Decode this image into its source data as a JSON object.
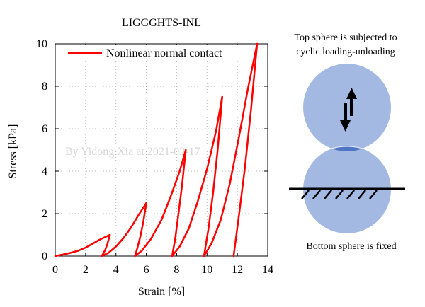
{
  "chart_data": {
    "type": "line",
    "title": "LIGGGHTS-INL",
    "xlabel": "Strain [%]",
    "ylabel": "Stress [kPa]",
    "xlim": [
      0,
      14
    ],
    "ylim": [
      0,
      10
    ],
    "xticks": [
      0,
      2,
      4,
      6,
      8,
      10,
      12,
      14
    ],
    "yticks": [
      0,
      2,
      4,
      6,
      8,
      10
    ],
    "grid": true,
    "legend_position": "top-left",
    "series": [
      {
        "name": "Nonlinear normal contact",
        "color": "#ff0000",
        "cycles": [
          {
            "load": [
              [
                0,
                0
              ],
              [
                0.5,
                0.07
              ],
              [
                1.0,
                0.15
              ],
              [
                1.5,
                0.25
              ],
              [
                2.0,
                0.4
              ],
              [
                2.5,
                0.6
              ],
              [
                3.0,
                0.8
              ],
              [
                3.6,
                1.0
              ]
            ],
            "unload": [
              [
                3.6,
                1.0
              ],
              [
                3.45,
                0.6
              ],
              [
                3.3,
                0.3
              ],
              [
                3.15,
                0.1
              ],
              [
                3.05,
                0
              ]
            ]
          },
          {
            "load": [
              [
                3.05,
                0
              ],
              [
                3.5,
                0.15
              ],
              [
                4.0,
                0.45
              ],
              [
                4.5,
                0.85
              ],
              [
                5.0,
                1.35
              ],
              [
                5.5,
                1.95
              ],
              [
                6.0,
                2.5
              ]
            ],
            "unload": [
              [
                6.0,
                2.5
              ],
              [
                5.8,
                1.6
              ],
              [
                5.6,
                0.9
              ],
              [
                5.4,
                0.35
              ],
              [
                5.25,
                0
              ]
            ]
          },
          {
            "load": [
              [
                5.25,
                0
              ],
              [
                5.7,
                0.25
              ],
              [
                6.3,
                0.8
              ],
              [
                7.0,
                1.7
              ],
              [
                7.6,
                2.8
              ],
              [
                8.2,
                4.0
              ],
              [
                8.6,
                5.0
              ]
            ],
            "unload": [
              [
                8.6,
                5.0
              ],
              [
                8.35,
                3.3
              ],
              [
                8.1,
                1.9
              ],
              [
                7.9,
                0.8
              ],
              [
                7.7,
                0
              ]
            ]
          },
          {
            "load": [
              [
                7.7,
                0
              ],
              [
                8.2,
                0.45
              ],
              [
                8.8,
                1.3
              ],
              [
                9.4,
                2.6
              ],
              [
                10.0,
                4.1
              ],
              [
                10.6,
                5.9
              ],
              [
                11.0,
                7.5
              ]
            ],
            "unload": [
              [
                11.0,
                7.5
              ],
              [
                10.7,
                5.0
              ],
              [
                10.4,
                3.0
              ],
              [
                10.1,
                1.3
              ],
              [
                9.8,
                0
              ]
            ]
          },
          {
            "load": [
              [
                9.8,
                0
              ],
              [
                10.3,
                0.6
              ],
              [
                10.9,
                1.7
              ],
              [
                11.5,
                3.4
              ],
              [
                12.1,
                5.6
              ],
              [
                12.7,
                7.9
              ],
              [
                13.3,
                10.0
              ]
            ],
            "unload": [
              [
                13.3,
                10.0
              ],
              [
                12.9,
                6.9
              ],
              [
                12.5,
                4.2
              ],
              [
                12.1,
                1.9
              ],
              [
                11.75,
                0
              ]
            ]
          }
        ]
      }
    ],
    "watermark": "By Yidong Xia at 2021-03-17"
  },
  "diagram": {
    "top_caption_line1": "Top sphere is subjected to",
    "top_caption_line2": "cyclic loading-unloading",
    "bottom_caption": "Bottom sphere is fixed",
    "sphere_color": "#a4b9e2",
    "overlap_color": "#4f75c5"
  }
}
